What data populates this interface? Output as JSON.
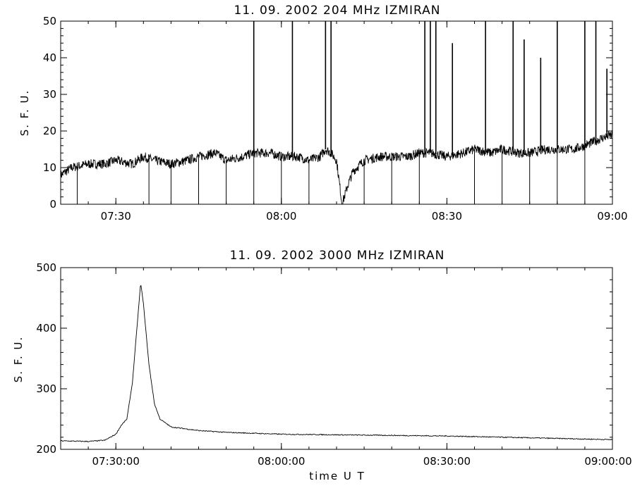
{
  "chart_data": [
    {
      "type": "line",
      "title": "11.  09.  2002    204 MHz     IZMIRAN",
      "ylabel": "S. F. U.",
      "xlabel": "",
      "xlim": [
        "07:20",
        "09:00"
      ],
      "ylim": [
        0,
        50
      ],
      "x_ticks": [
        "07:30",
        "08:00",
        "08:30",
        "09:00"
      ],
      "y_ticks": [
        "0",
        "10",
        "20",
        "30",
        "40",
        "50"
      ],
      "grid": false,
      "series": [
        {
          "x": [
            "07:20",
            "07:22",
            "07:25",
            "07:28",
            "07:30",
            "07:33",
            "07:35",
            "07:37",
            "07:40",
            "07:43",
            "07:45",
            "07:48",
            "07:50",
            "07:53",
            "07:55",
            "07:58",
            "08:00",
            "08:03",
            "08:05",
            "08:07",
            "08:08",
            "08:09",
            "08:10",
            "08:11",
            "08:12",
            "08:13",
            "08:15",
            "08:18",
            "08:20",
            "08:23",
            "08:25",
            "08:27",
            "08:30",
            "08:33",
            "08:35",
            "08:38",
            "08:40",
            "08:43",
            "08:45",
            "08:48",
            "08:50",
            "08:53",
            "08:55",
            "08:58",
            "09:00"
          ],
          "values": [
            8,
            10,
            11,
            11,
            12,
            11,
            13,
            12,
            11,
            12,
            13,
            14,
            12,
            13,
            14,
            14,
            13,
            13,
            12,
            13,
            15,
            14,
            12,
            0,
            5,
            9,
            12,
            13,
            13,
            13,
            14,
            14,
            13,
            14,
            15,
            14,
            15,
            14,
            14,
            15,
            15,
            15,
            16,
            18,
            19
          ],
          "spikes": [
            {
              "x": "07:55",
              "value": 50
            },
            {
              "x": "08:02",
              "value": 50
            },
            {
              "x": "08:08",
              "value": 50
            },
            {
              "x": "08:09",
              "value": 50
            },
            {
              "x": "08:26",
              "value": 50
            },
            {
              "x": "08:27",
              "value": 50
            },
            {
              "x": "08:28",
              "value": 50
            },
            {
              "x": "08:31",
              "value": 44
            },
            {
              "x": "08:37",
              "value": 50
            },
            {
              "x": "08:42",
              "value": 50
            },
            {
              "x": "08:44",
              "value": 45
            },
            {
              "x": "08:47",
              "value": 40
            },
            {
              "x": "08:50",
              "value": 50
            },
            {
              "x": "08:55",
              "value": 50
            },
            {
              "x": "08:57",
              "value": 50
            },
            {
              "x": "08:59",
              "value": 37
            }
          ],
          "dips": [
            "07:23",
            "07:36",
            "07:40",
            "07:45",
            "07:50",
            "07:55",
            "08:00",
            "08:05",
            "08:15",
            "08:20",
            "08:25",
            "08:35",
            "08:40",
            "08:45",
            "08:50",
            "08:55"
          ]
        }
      ]
    },
    {
      "type": "line",
      "title": "11.  09.  2002    3000 MHz     IZMIRAN",
      "ylabel": "S. F. U.",
      "xlabel": "time   U T",
      "xlim": [
        "07:20:00",
        "09:00:00"
      ],
      "ylim": [
        200,
        500
      ],
      "x_ticks": [
        "07:30:00",
        "08:00:00",
        "08:30:00",
        "09:00:00"
      ],
      "y_ticks": [
        "200",
        "300",
        "400",
        "500"
      ],
      "grid": false,
      "series": [
        {
          "x": [
            "07:20:00",
            "07:25:00",
            "07:28:00",
            "07:30:00",
            "07:31:00",
            "07:32:00",
            "07:33:00",
            "07:34:00",
            "07:34:30",
            "07:35:00",
            "07:36:00",
            "07:37:00",
            "07:38:00",
            "07:40:00",
            "07:45:00",
            "07:50:00",
            "08:00:00",
            "08:10:00",
            "08:20:00",
            "08:30:00",
            "08:40:00",
            "08:50:00",
            "09:00:00"
          ],
          "values": [
            214,
            213,
            215,
            225,
            240,
            250,
            310,
            420,
            475,
            440,
            340,
            275,
            250,
            237,
            231,
            228,
            225,
            224,
            223,
            222,
            220,
            218,
            216
          ]
        }
      ]
    }
  ]
}
